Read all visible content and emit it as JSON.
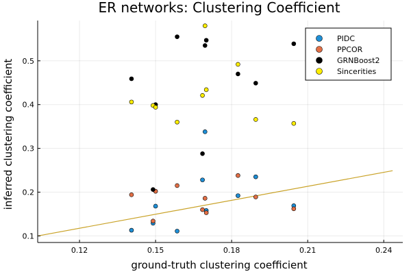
{
  "chart_data": {
    "type": "scatter",
    "title": "ER networks: Clustering Coefficient",
    "xlabel": "ground-truth clustering coefficient",
    "ylabel": "inferred clustering coefficient",
    "xlim": [
      0.1035,
      0.2475
    ],
    "ylim": [
      0.085,
      0.592
    ],
    "xticks": [
      0.12,
      0.15,
      0.18,
      0.21,
      0.24
    ],
    "xtick_labels": [
      "0.12",
      "0.15",
      "0.18",
      "0.21",
      "0.24"
    ],
    "yticks": [
      0.1,
      0.2,
      0.3,
      0.4,
      0.5
    ],
    "ytick_labels": [
      "0.1",
      "0.2",
      "0.3",
      "0.4",
      "0.5"
    ],
    "grid": true,
    "legend_position": "top-right",
    "series": [
      {
        "name": "PIDC",
        "color": "#1f8fd6",
        "points": [
          {
            "x": 0.1405,
            "y": 0.113
          },
          {
            "x": 0.149,
            "y": 0.129
          },
          {
            "x": 0.15,
            "y": 0.168
          },
          {
            "x": 0.1585,
            "y": 0.111
          },
          {
            "x": 0.1685,
            "y": 0.228
          },
          {
            "x": 0.1695,
            "y": 0.338
          },
          {
            "x": 0.17,
            "y": 0.158
          },
          {
            "x": 0.1825,
            "y": 0.192
          },
          {
            "x": 0.1895,
            "y": 0.235
          },
          {
            "x": 0.2045,
            "y": 0.169
          }
        ]
      },
      {
        "name": "PPCOR",
        "color": "#e26f46",
        "points": [
          {
            "x": 0.1405,
            "y": 0.194
          },
          {
            "x": 0.149,
            "y": 0.134
          },
          {
            "x": 0.15,
            "y": 0.202
          },
          {
            "x": 0.1585,
            "y": 0.215
          },
          {
            "x": 0.1685,
            "y": 0.16
          },
          {
            "x": 0.1695,
            "y": 0.186
          },
          {
            "x": 0.17,
            "y": 0.153
          },
          {
            "x": 0.1825,
            "y": 0.238
          },
          {
            "x": 0.1895,
            "y": 0.189
          },
          {
            "x": 0.2045,
            "y": 0.162
          }
        ]
      },
      {
        "name": "GRNBoost2",
        "color": "#000000",
        "points": [
          {
            "x": 0.1405,
            "y": 0.459
          },
          {
            "x": 0.149,
            "y": 0.206
          },
          {
            "x": 0.15,
            "y": 0.4
          },
          {
            "x": 0.1585,
            "y": 0.555
          },
          {
            "x": 0.1685,
            "y": 0.288
          },
          {
            "x": 0.1695,
            "y": 0.535
          },
          {
            "x": 0.17,
            "y": 0.547
          },
          {
            "x": 0.1825,
            "y": 0.47
          },
          {
            "x": 0.1895,
            "y": 0.449
          },
          {
            "x": 0.2045,
            "y": 0.539
          }
        ]
      },
      {
        "name": "Sincerities",
        "color": "#ffee00",
        "points": [
          {
            "x": 0.1405,
            "y": 0.406
          },
          {
            "x": 0.149,
            "y": 0.398
          },
          {
            "x": 0.15,
            "y": 0.394
          },
          {
            "x": 0.1585,
            "y": 0.36
          },
          {
            "x": 0.1685,
            "y": 0.421
          },
          {
            "x": 0.1695,
            "y": 0.58
          },
          {
            "x": 0.17,
            "y": 0.434
          },
          {
            "x": 0.1825,
            "y": 0.492
          },
          {
            "x": 0.1895,
            "y": 0.366
          },
          {
            "x": 0.2045,
            "y": 0.357
          }
        ]
      }
    ],
    "reference_line": {
      "color": "#c9a227",
      "points": [
        {
          "x": 0.1035,
          "y": 0.1
        },
        {
          "x": 0.2435,
          "y": 0.249
        }
      ]
    }
  }
}
